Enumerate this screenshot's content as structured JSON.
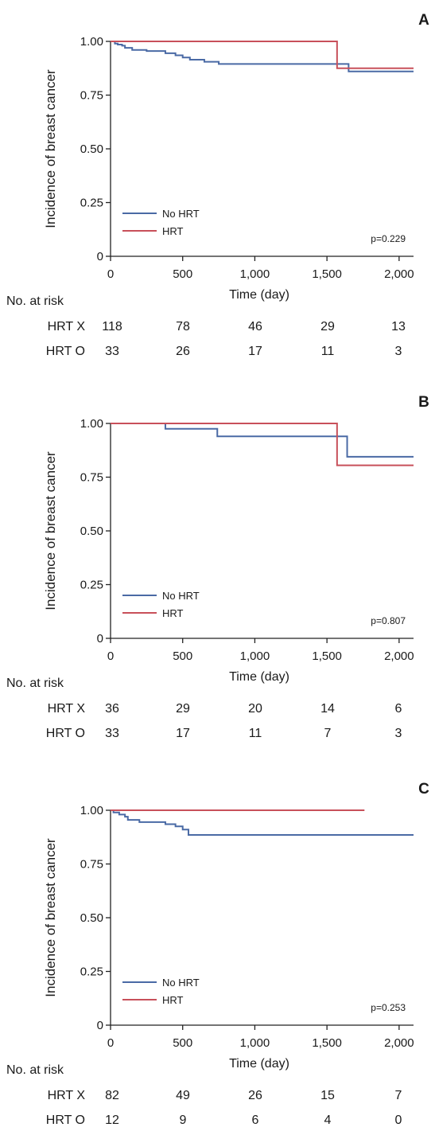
{
  "chart_data": [
    {
      "type": "line",
      "panel": "A",
      "ylabel": "Incidence of breast cancer",
      "xlabel": "Time (day)",
      "x_ticks": [
        "0",
        "500",
        "1,000",
        "1,500",
        "2,000"
      ],
      "y_ticks": [
        "0",
        "0.25",
        "0.50",
        "0.75",
        "1.00"
      ],
      "xlim": [
        0,
        2100
      ],
      "ylim": [
        0,
        1
      ],
      "legend": [
        "No HRT",
        "HRT"
      ],
      "p_value": "p=0.229",
      "series": [
        {
          "name": "No HRT",
          "color": "#4a6aa5",
          "x": [
            0,
            30,
            50,
            80,
            100,
            150,
            250,
            380,
            450,
            500,
            550,
            650,
            750,
            1650,
            2100
          ],
          "y": [
            1.0,
            0.99,
            0.985,
            0.98,
            0.97,
            0.96,
            0.955,
            0.945,
            0.935,
            0.925,
            0.915,
            0.905,
            0.895,
            0.86,
            0.86
          ]
        },
        {
          "name": "HRT",
          "color": "#c8505a",
          "x": [
            0,
            1570,
            2100
          ],
          "y": [
            1.0,
            0.875,
            0.875
          ]
        }
      ],
      "at_risk": {
        "title": "No. at risk",
        "rows": [
          {
            "label": "HRT X",
            "values": [
              "118",
              "78",
              "46",
              "29",
              "13"
            ]
          },
          {
            "label": "HRT O",
            "values": [
              "33",
              "26",
              "17",
              "11",
              "3"
            ]
          }
        ]
      }
    },
    {
      "type": "line",
      "panel": "B",
      "ylabel": "Incidence of breast cancer",
      "xlabel": "Time (day)",
      "x_ticks": [
        "0",
        "500",
        "1,000",
        "1,500",
        "2,000"
      ],
      "y_ticks": [
        "0",
        "0.25",
        "0.50",
        "0.75",
        "1.00"
      ],
      "xlim": [
        0,
        2100
      ],
      "ylim": [
        0,
        1
      ],
      "legend": [
        "No HRT",
        "HRT"
      ],
      "p_value": "p=0.807",
      "series": [
        {
          "name": "No HRT",
          "color": "#4a6aa5",
          "x": [
            0,
            380,
            740,
            1640,
            2100
          ],
          "y": [
            1.0,
            0.975,
            0.94,
            0.845,
            0.845
          ]
        },
        {
          "name": "HRT",
          "color": "#c8505a",
          "x": [
            0,
            1570,
            2100
          ],
          "y": [
            1.0,
            0.805,
            0.805
          ]
        }
      ],
      "at_risk": {
        "title": "No. at risk",
        "rows": [
          {
            "label": "HRT X",
            "values": [
              "36",
              "29",
              "20",
              "14",
              "6"
            ]
          },
          {
            "label": "HRT O",
            "values": [
              "33",
              "17",
              "11",
              "7",
              "3"
            ]
          }
        ]
      }
    },
    {
      "type": "line",
      "panel": "C",
      "ylabel": "Incidence of breast cancer",
      "xlabel": "Time (day)",
      "x_ticks": [
        "0",
        "500",
        "1,000",
        "1,500",
        "2,000"
      ],
      "y_ticks": [
        "0",
        "0.25",
        "0.50",
        "0.75",
        "1.00"
      ],
      "xlim": [
        0,
        2100
      ],
      "ylim": [
        0,
        1
      ],
      "legend": [
        "No HRT",
        "HRT"
      ],
      "p_value": "p=0.253",
      "series": [
        {
          "name": "No HRT",
          "color": "#4a6aa5",
          "x": [
            0,
            20,
            60,
            100,
            120,
            200,
            380,
            450,
            500,
            540,
            2100
          ],
          "y": [
            1.0,
            0.99,
            0.98,
            0.97,
            0.955,
            0.945,
            0.935,
            0.925,
            0.91,
            0.885,
            0.885
          ]
        },
        {
          "name": "HRT",
          "color": "#c8505a",
          "x": [
            0,
            1760
          ],
          "y": [
            1.0,
            1.0
          ]
        }
      ],
      "at_risk": {
        "title": "No. at risk",
        "rows": [
          {
            "label": "HRT X",
            "values": [
              "82",
              "49",
              "26",
              "15",
              "7"
            ]
          },
          {
            "label": "HRT O",
            "values": [
              "12",
              "9",
              "6",
              "4",
              "0"
            ]
          }
        ]
      }
    }
  ]
}
